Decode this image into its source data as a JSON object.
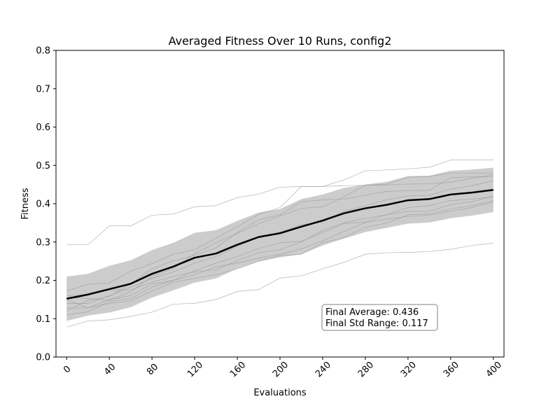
{
  "chart_data": {
    "type": "line",
    "title": "Averaged Fitness Over 10 Runs, config2",
    "xlabel": "Evaluations",
    "ylabel": "Fitness",
    "xlim": [
      -10,
      410
    ],
    "ylim": [
      0,
      0.8
    ],
    "xticks": [
      0,
      40,
      80,
      120,
      160,
      200,
      240,
      280,
      320,
      360,
      400
    ],
    "yticks": [
      0.0,
      0.1,
      0.2,
      0.3,
      0.4,
      0.5,
      0.6,
      0.7,
      0.8
    ],
    "ytick_labels": [
      "0.0",
      "0.1",
      "0.2",
      "0.3",
      "0.4",
      "0.5",
      "0.6",
      "0.7",
      "0.8"
    ],
    "x": [
      0,
      20,
      40,
      60,
      80,
      100,
      120,
      140,
      160,
      180,
      200,
      220,
      240,
      260,
      280,
      300,
      320,
      340,
      360,
      380,
      400
    ],
    "average": {
      "values": [
        0.152,
        0.163,
        0.177,
        0.191,
        0.217,
        0.236,
        0.259,
        0.27,
        0.293,
        0.313,
        0.323,
        0.34,
        0.356,
        0.375,
        0.388,
        0.397,
        0.409,
        0.412,
        0.424,
        0.429,
        0.436
      ],
      "color": "#000000"
    },
    "std_band": {
      "upper": [
        0.21,
        0.217,
        0.238,
        0.252,
        0.279,
        0.298,
        0.324,
        0.331,
        0.355,
        0.377,
        0.386,
        0.412,
        0.424,
        0.441,
        0.45,
        0.457,
        0.472,
        0.473,
        0.486,
        0.489,
        0.494
      ],
      "lower": [
        0.094,
        0.108,
        0.116,
        0.13,
        0.155,
        0.174,
        0.194,
        0.205,
        0.231,
        0.249,
        0.26,
        0.268,
        0.291,
        0.309,
        0.326,
        0.337,
        0.348,
        0.351,
        0.362,
        0.369,
        0.378
      ],
      "color": "#cccccc"
    },
    "runs": [
      [
        0.293,
        0.293,
        0.342,
        0.342,
        0.37,
        0.373,
        0.392,
        0.395,
        0.416,
        0.425,
        0.443,
        0.445,
        0.445,
        0.462,
        0.486,
        0.488,
        0.491,
        0.495,
        0.514,
        0.514,
        0.514
      ],
      [
        0.078,
        0.094,
        0.097,
        0.106,
        0.117,
        0.138,
        0.14,
        0.15,
        0.171,
        0.176,
        0.206,
        0.212,
        0.23,
        0.247,
        0.268,
        0.272,
        0.273,
        0.275,
        0.281,
        0.291,
        0.297
      ],
      [
        0.172,
        0.19,
        0.193,
        0.224,
        0.244,
        0.268,
        0.28,
        0.31,
        0.34,
        0.372,
        0.39,
        0.445,
        0.445,
        0.447,
        0.448,
        0.451,
        0.469,
        0.471,
        0.48,
        0.48,
        0.48
      ],
      [
        0.155,
        0.153,
        0.148,
        0.17,
        0.21,
        0.23,
        0.27,
        0.298,
        0.322,
        0.348,
        0.368,
        0.388,
        0.392,
        0.418,
        0.448,
        0.449,
        0.451,
        0.452,
        0.456,
        0.466,
        0.476
      ],
      [
        0.12,
        0.148,
        0.158,
        0.191,
        0.23,
        0.251,
        0.265,
        0.285,
        0.325,
        0.358,
        0.371,
        0.405,
        0.41,
        0.412,
        0.422,
        0.432,
        0.434,
        0.435,
        0.468,
        0.47,
        0.471
      ],
      [
        0.14,
        0.14,
        0.16,
        0.182,
        0.205,
        0.222,
        0.245,
        0.262,
        0.289,
        0.312,
        0.325,
        0.345,
        0.352,
        0.38,
        0.395,
        0.41,
        0.42,
        0.422,
        0.438,
        0.447,
        0.46
      ],
      [
        0.11,
        0.118,
        0.145,
        0.152,
        0.182,
        0.2,
        0.225,
        0.245,
        0.262,
        0.283,
        0.298,
        0.302,
        0.325,
        0.348,
        0.352,
        0.372,
        0.39,
        0.395,
        0.408,
        0.412,
        0.418
      ],
      [
        0.16,
        0.162,
        0.175,
        0.175,
        0.195,
        0.21,
        0.222,
        0.228,
        0.252,
        0.272,
        0.28,
        0.3,
        0.33,
        0.35,
        0.362,
        0.371,
        0.38,
        0.38,
        0.398,
        0.405,
        0.42
      ],
      [
        0.15,
        0.128,
        0.15,
        0.16,
        0.19,
        0.2,
        0.215,
        0.235,
        0.245,
        0.258,
        0.268,
        0.282,
        0.303,
        0.328,
        0.351,
        0.36,
        0.367,
        0.37,
        0.38,
        0.39,
        0.405
      ],
      [
        0.128,
        0.128,
        0.14,
        0.146,
        0.172,
        0.195,
        0.205,
        0.215,
        0.23,
        0.25,
        0.265,
        0.268,
        0.298,
        0.312,
        0.338,
        0.35,
        0.371,
        0.373,
        0.386,
        0.395,
        0.408
      ]
    ],
    "run_color": "#999999",
    "annotation": {
      "line1": "Final Average: 0.436",
      "line2": "Final Std Range: 0.117"
    },
    "grid": false
  }
}
